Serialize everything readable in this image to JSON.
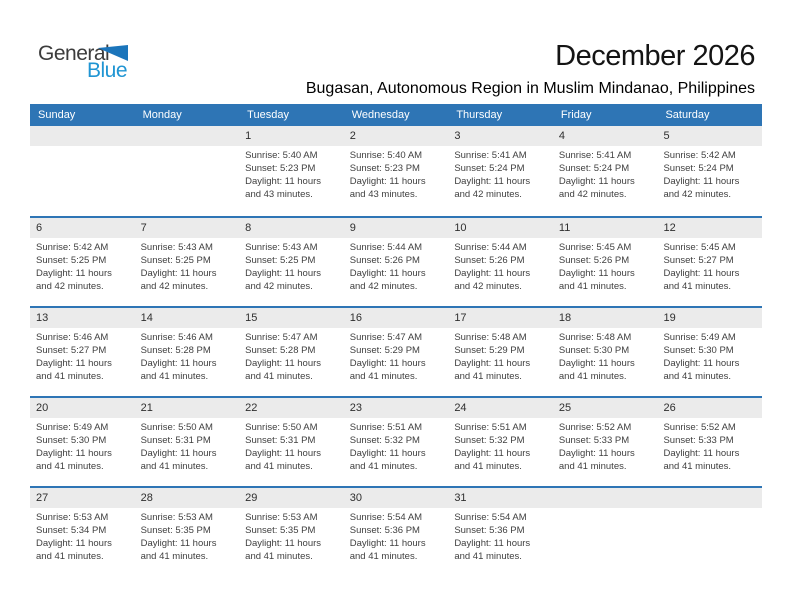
{
  "logo": {
    "part1": "General",
    "part2": "Blue"
  },
  "header": {
    "title": "December 2026",
    "subtitle": "Bugasan, Autonomous Region in Muslim Mindanao, Philippines"
  },
  "weekdays": [
    "Sunday",
    "Monday",
    "Tuesday",
    "Wednesday",
    "Thursday",
    "Friday",
    "Saturday"
  ],
  "colors": {
    "header_bar_blue": "#2e75b5",
    "week_divider_blue": "#2e75b5",
    "day_band_gray": "#ebebeb",
    "logo_triangle_blue": "#1b75bb",
    "logo_text_blue": "#2095d3",
    "body_text": "#3f3f3f"
  },
  "weeks": [
    [
      null,
      null,
      {
        "day": "1",
        "sunrise": "Sunrise: 5:40 AM",
        "sunset": "Sunset: 5:23 PM",
        "daylight1": "Daylight: 11 hours",
        "daylight2": "and 43 minutes."
      },
      {
        "day": "2",
        "sunrise": "Sunrise: 5:40 AM",
        "sunset": "Sunset: 5:23 PM",
        "daylight1": "Daylight: 11 hours",
        "daylight2": "and 43 minutes."
      },
      {
        "day": "3",
        "sunrise": "Sunrise: 5:41 AM",
        "sunset": "Sunset: 5:24 PM",
        "daylight1": "Daylight: 11 hours",
        "daylight2": "and 42 minutes."
      },
      {
        "day": "4",
        "sunrise": "Sunrise: 5:41 AM",
        "sunset": "Sunset: 5:24 PM",
        "daylight1": "Daylight: 11 hours",
        "daylight2": "and 42 minutes."
      },
      {
        "day": "5",
        "sunrise": "Sunrise: 5:42 AM",
        "sunset": "Sunset: 5:24 PM",
        "daylight1": "Daylight: 11 hours",
        "daylight2": "and 42 minutes."
      }
    ],
    [
      {
        "day": "6",
        "sunrise": "Sunrise: 5:42 AM",
        "sunset": "Sunset: 5:25 PM",
        "daylight1": "Daylight: 11 hours",
        "daylight2": "and 42 minutes."
      },
      {
        "day": "7",
        "sunrise": "Sunrise: 5:43 AM",
        "sunset": "Sunset: 5:25 PM",
        "daylight1": "Daylight: 11 hours",
        "daylight2": "and 42 minutes."
      },
      {
        "day": "8",
        "sunrise": "Sunrise: 5:43 AM",
        "sunset": "Sunset: 5:25 PM",
        "daylight1": "Daylight: 11 hours",
        "daylight2": "and 42 minutes."
      },
      {
        "day": "9",
        "sunrise": "Sunrise: 5:44 AM",
        "sunset": "Sunset: 5:26 PM",
        "daylight1": "Daylight: 11 hours",
        "daylight2": "and 42 minutes."
      },
      {
        "day": "10",
        "sunrise": "Sunrise: 5:44 AM",
        "sunset": "Sunset: 5:26 PM",
        "daylight1": "Daylight: 11 hours",
        "daylight2": "and 42 minutes."
      },
      {
        "day": "11",
        "sunrise": "Sunrise: 5:45 AM",
        "sunset": "Sunset: 5:26 PM",
        "daylight1": "Daylight: 11 hours",
        "daylight2": "and 41 minutes."
      },
      {
        "day": "12",
        "sunrise": "Sunrise: 5:45 AM",
        "sunset": "Sunset: 5:27 PM",
        "daylight1": "Daylight: 11 hours",
        "daylight2": "and 41 minutes."
      }
    ],
    [
      {
        "day": "13",
        "sunrise": "Sunrise: 5:46 AM",
        "sunset": "Sunset: 5:27 PM",
        "daylight1": "Daylight: 11 hours",
        "daylight2": "and 41 minutes."
      },
      {
        "day": "14",
        "sunrise": "Sunrise: 5:46 AM",
        "sunset": "Sunset: 5:28 PM",
        "daylight1": "Daylight: 11 hours",
        "daylight2": "and 41 minutes."
      },
      {
        "day": "15",
        "sunrise": "Sunrise: 5:47 AM",
        "sunset": "Sunset: 5:28 PM",
        "daylight1": "Daylight: 11 hours",
        "daylight2": "and 41 minutes."
      },
      {
        "day": "16",
        "sunrise": "Sunrise: 5:47 AM",
        "sunset": "Sunset: 5:29 PM",
        "daylight1": "Daylight: 11 hours",
        "daylight2": "and 41 minutes."
      },
      {
        "day": "17",
        "sunrise": "Sunrise: 5:48 AM",
        "sunset": "Sunset: 5:29 PM",
        "daylight1": "Daylight: 11 hours",
        "daylight2": "and 41 minutes."
      },
      {
        "day": "18",
        "sunrise": "Sunrise: 5:48 AM",
        "sunset": "Sunset: 5:30 PM",
        "daylight1": "Daylight: 11 hours",
        "daylight2": "and 41 minutes."
      },
      {
        "day": "19",
        "sunrise": "Sunrise: 5:49 AM",
        "sunset": "Sunset: 5:30 PM",
        "daylight1": "Daylight: 11 hours",
        "daylight2": "and 41 minutes."
      }
    ],
    [
      {
        "day": "20",
        "sunrise": "Sunrise: 5:49 AM",
        "sunset": "Sunset: 5:30 PM",
        "daylight1": "Daylight: 11 hours",
        "daylight2": "and 41 minutes."
      },
      {
        "day": "21",
        "sunrise": "Sunrise: 5:50 AM",
        "sunset": "Sunset: 5:31 PM",
        "daylight1": "Daylight: 11 hours",
        "daylight2": "and 41 minutes."
      },
      {
        "day": "22",
        "sunrise": "Sunrise: 5:50 AM",
        "sunset": "Sunset: 5:31 PM",
        "daylight1": "Daylight: 11 hours",
        "daylight2": "and 41 minutes."
      },
      {
        "day": "23",
        "sunrise": "Sunrise: 5:51 AM",
        "sunset": "Sunset: 5:32 PM",
        "daylight1": "Daylight: 11 hours",
        "daylight2": "and 41 minutes."
      },
      {
        "day": "24",
        "sunrise": "Sunrise: 5:51 AM",
        "sunset": "Sunset: 5:32 PM",
        "daylight1": "Daylight: 11 hours",
        "daylight2": "and 41 minutes."
      },
      {
        "day": "25",
        "sunrise": "Sunrise: 5:52 AM",
        "sunset": "Sunset: 5:33 PM",
        "daylight1": "Daylight: 11 hours",
        "daylight2": "and 41 minutes."
      },
      {
        "day": "26",
        "sunrise": "Sunrise: 5:52 AM",
        "sunset": "Sunset: 5:33 PM",
        "daylight1": "Daylight: 11 hours",
        "daylight2": "and 41 minutes."
      }
    ],
    [
      {
        "day": "27",
        "sunrise": "Sunrise: 5:53 AM",
        "sunset": "Sunset: 5:34 PM",
        "daylight1": "Daylight: 11 hours",
        "daylight2": "and 41 minutes."
      },
      {
        "day": "28",
        "sunrise": "Sunrise: 5:53 AM",
        "sunset": "Sunset: 5:35 PM",
        "daylight1": "Daylight: 11 hours",
        "daylight2": "and 41 minutes."
      },
      {
        "day": "29",
        "sunrise": "Sunrise: 5:53 AM",
        "sunset": "Sunset: 5:35 PM",
        "daylight1": "Daylight: 11 hours",
        "daylight2": "and 41 minutes."
      },
      {
        "day": "30",
        "sunrise": "Sunrise: 5:54 AM",
        "sunset": "Sunset: 5:36 PM",
        "daylight1": "Daylight: 11 hours",
        "daylight2": "and 41 minutes."
      },
      {
        "day": "31",
        "sunrise": "Sunrise: 5:54 AM",
        "sunset": "Sunset: 5:36 PM",
        "daylight1": "Daylight: 11 hours",
        "daylight2": "and 41 minutes."
      },
      null,
      null
    ]
  ]
}
